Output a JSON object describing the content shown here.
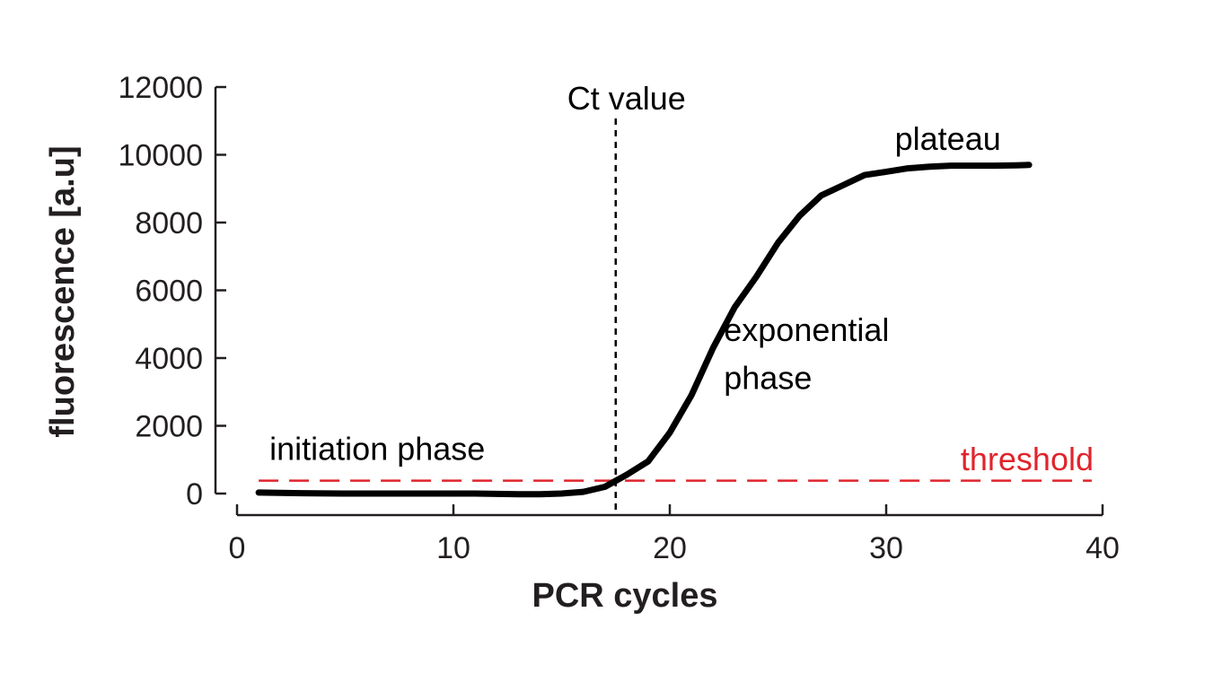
{
  "chart_data": {
    "type": "line",
    "xlabel": "PCR cycles",
    "ylabel": "fluorescence [a.u]",
    "xlim": [
      0,
      40
    ],
    "ylim": [
      0,
      12000
    ],
    "x_ticks": [
      0,
      10,
      20,
      30,
      40
    ],
    "y_ticks": [
      0,
      2000,
      4000,
      6000,
      8000,
      10000,
      12000
    ],
    "grid": false,
    "series": [
      {
        "x": [
          1,
          3,
          5,
          7,
          9,
          11,
          13,
          14,
          15,
          16,
          17,
          18,
          19,
          20,
          21,
          22,
          23,
          24,
          25,
          26,
          27,
          28,
          29,
          30,
          31,
          32,
          33,
          34,
          35,
          36,
          36.6
        ],
        "y": [
          30,
          10,
          0,
          0,
          0,
          0,
          -20,
          -20,
          0,
          50,
          200,
          550,
          950,
          1800,
          2900,
          4300,
          5500,
          6400,
          7400,
          8200,
          8800,
          9100,
          9400,
          9500,
          9600,
          9650,
          9680,
          9680,
          9680,
          9690,
          9700
        ]
      }
    ],
    "threshold": {
      "value": 380,
      "label": "threshold",
      "color": "#e0242c"
    },
    "ct": {
      "value": 17.5,
      "label": "Ct value"
    },
    "annotations": [
      {
        "text": "initiation phase",
        "x": 1.5,
        "y": 1000
      },
      {
        "text": "plateau",
        "x": 30.4,
        "y": 10150
      },
      {
        "text": "exponential",
        "x": 22.5,
        "y": 4500
      },
      {
        "text": "phase",
        "x": 22.5,
        "y": 3080
      }
    ]
  }
}
